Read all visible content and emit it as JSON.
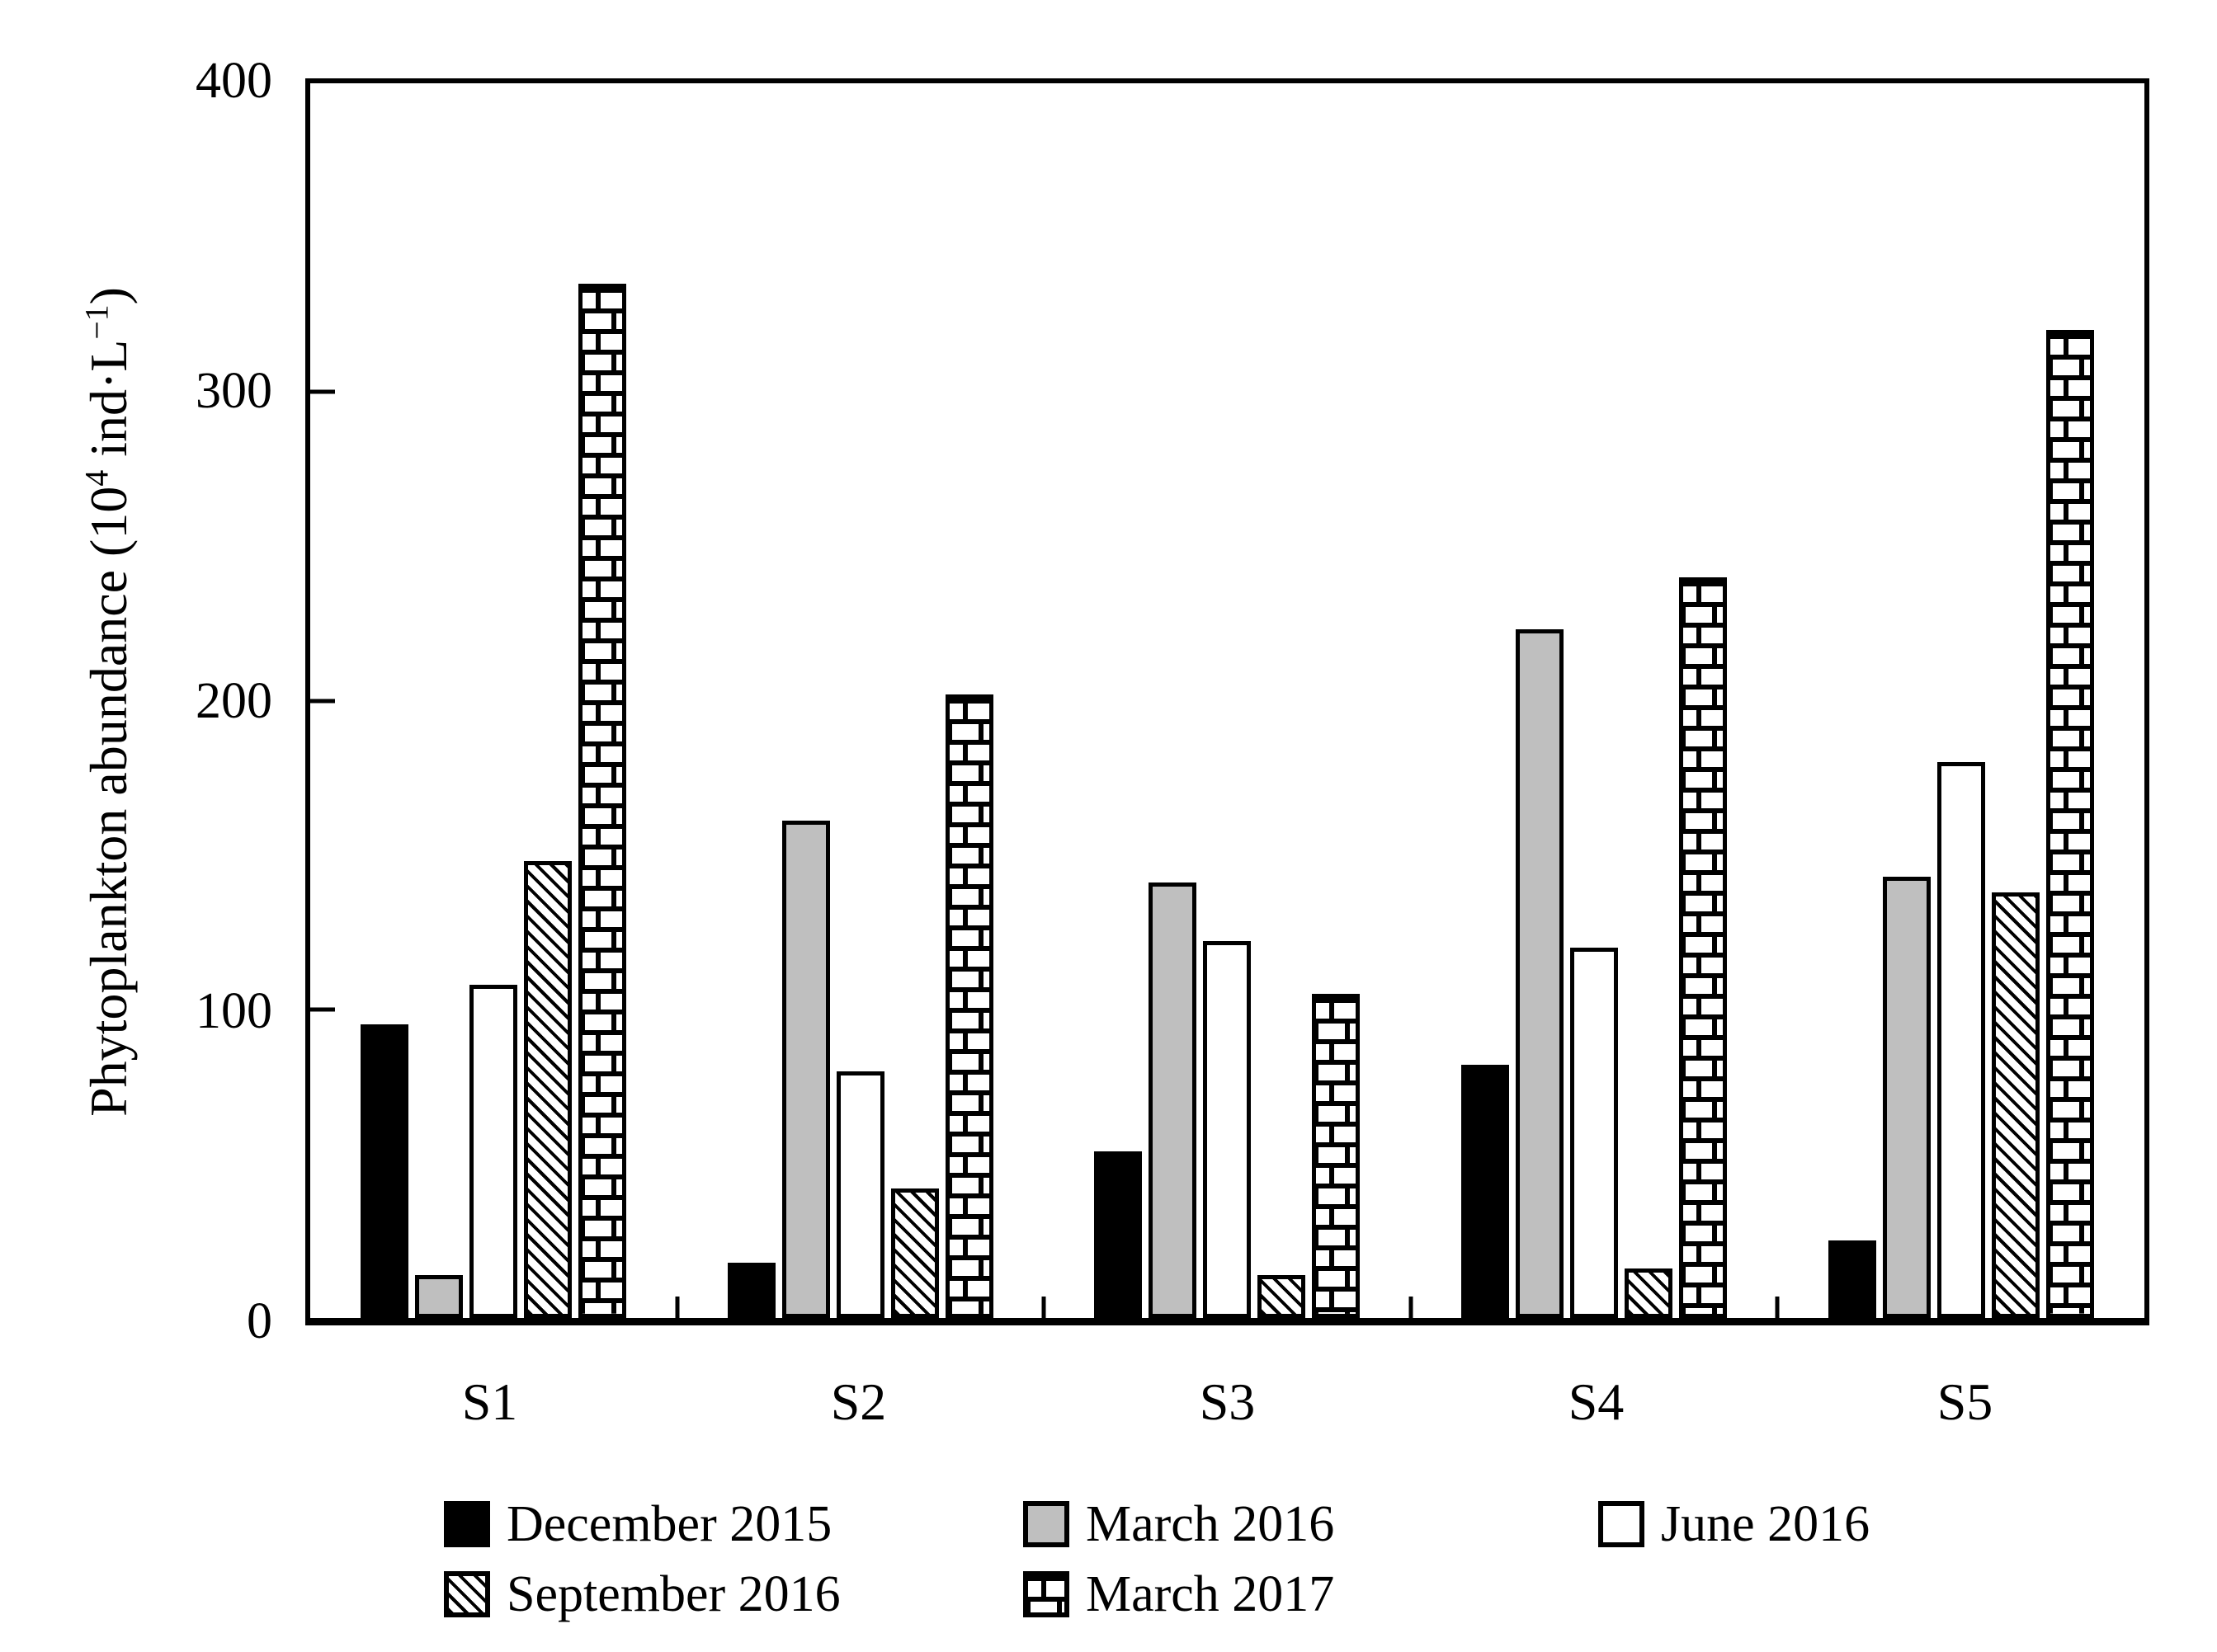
{
  "y_axis": {
    "title_prefix": "Phytoplankton abundance (10",
    "title_sup1": "4",
    "title_unit": " ind·L",
    "title_sup2": "−1",
    "title_suffix": ")"
  },
  "chart_data": {
    "type": "bar",
    "title": "",
    "categories": [
      "S1",
      "S2",
      "S3",
      "S4",
      "S5"
    ],
    "series": [
      {
        "name": "December 2015",
        "style": "solid-black",
        "values": [
          95,
          18,
          54,
          82,
          25
        ]
      },
      {
        "name": "March 2016",
        "style": "solid-gray",
        "values": [
          14,
          161,
          141,
          223,
          143
        ]
      },
      {
        "name": "June 2016",
        "style": "solid-white",
        "values": [
          108,
          80,
          122,
          120,
          180
        ]
      },
      {
        "name": "September 2016",
        "style": "diagonal-hatch",
        "values": [
          148,
          42,
          14,
          16,
          138
        ]
      },
      {
        "name": "March 2017",
        "style": "brick",
        "values": [
          335,
          202,
          105,
          240,
          320
        ]
      }
    ],
    "xlabel": "",
    "ylabel": "Phytoplankton abundance (10⁴ ind·L⁻¹)",
    "ylim": [
      0,
      400
    ],
    "yticks": [
      0,
      100,
      200,
      300,
      400
    ],
    "grid": false,
    "legend_position": "bottom",
    "bar_outline_color": "#000000"
  },
  "legend": {
    "rows": [
      [
        "December 2015",
        "March 2016",
        "June 2016"
      ],
      [
        "September 2016",
        "March 2017"
      ]
    ]
  },
  "colors": {
    "black": "#000000",
    "gray": "#bfbfbf",
    "white": "#ffffff",
    "text": "#000000"
  }
}
